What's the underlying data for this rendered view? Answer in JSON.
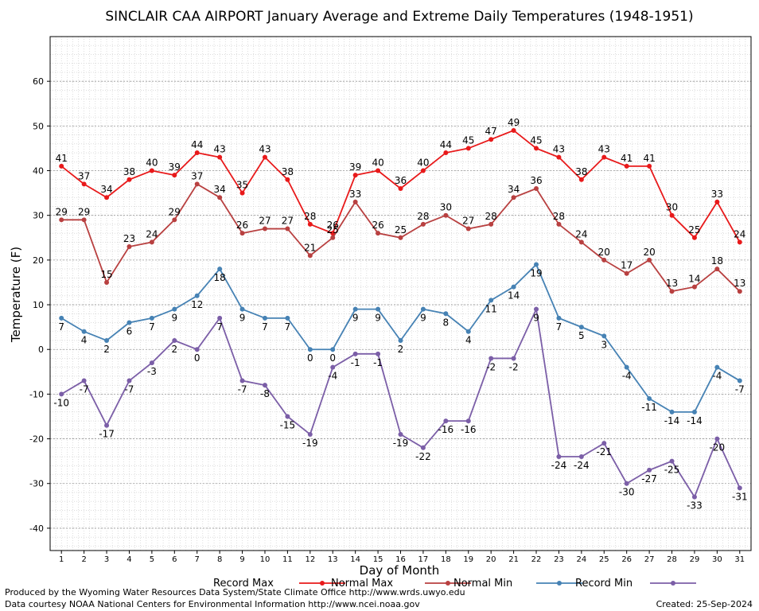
{
  "chart_data": {
    "type": "line",
    "title": "SINCLAIR CAA AIRPORT January Average and Extreme Daily Temperatures (1948-1951)",
    "xlabel": "Day of Month",
    "ylabel": "Temperature (F)",
    "ylim": [
      -45,
      70
    ],
    "y_ticks": [
      -40,
      -30,
      -20,
      -10,
      0,
      10,
      20,
      30,
      40,
      50,
      60
    ],
    "x": [
      1,
      2,
      3,
      4,
      5,
      6,
      7,
      8,
      9,
      10,
      11,
      12,
      13,
      14,
      15,
      16,
      17,
      18,
      19,
      20,
      21,
      22,
      23,
      24,
      25,
      26,
      27,
      28,
      29,
      30,
      31
    ],
    "grid": true,
    "legend_position": "bottom",
    "series": [
      {
        "name": "Record Max",
        "color": "#e8191a",
        "label_pos": "above",
        "values": [
          41,
          37,
          34,
          38,
          40,
          39,
          44,
          43,
          35,
          43,
          38,
          28,
          26,
          39,
          40,
          36,
          40,
          44,
          45,
          47,
          49,
          45,
          43,
          38,
          43,
          41,
          41,
          30,
          25,
          33,
          24
        ]
      },
      {
        "name": "Normal Max",
        "color": "#b84040",
        "label_pos": "above",
        "values": [
          29,
          29,
          15,
          23,
          24,
          29,
          37,
          34,
          26,
          27,
          27,
          21,
          25,
          33,
          26,
          25,
          28,
          30,
          27,
          28,
          34,
          36,
          28,
          24,
          20,
          17,
          20,
          13,
          14,
          18,
          13
        ]
      },
      {
        "name": "Normal Min",
        "color": "#4682b4",
        "label_pos": "below",
        "values": [
          7,
          4,
          2,
          6,
          7,
          9,
          12,
          18,
          9,
          7,
          7,
          0,
          0,
          9,
          9,
          2,
          9,
          8,
          4,
          11,
          14,
          19,
          7,
          5,
          3,
          -4,
          -11,
          -14,
          -14,
          -4,
          -7
        ]
      },
      {
        "name": "Record Min",
        "color": "#7b5ea7",
        "label_pos": "below",
        "values": [
          -10,
          -7,
          -17,
          -7,
          -3,
          2,
          0,
          7,
          -7,
          -8,
          -15,
          -19,
          -4,
          -1,
          -1,
          -19,
          -22,
          -16,
          -16,
          -2,
          -2,
          9,
          -24,
          -24,
          -21,
          -30,
          -27,
          -25,
          -33,
          -20,
          -31
        ]
      }
    ]
  },
  "footer": {
    "produced_by": "Produced by the Wyoming Water Resources Data System/State Climate Office http://www.wrds.uwyo.edu",
    "data_courtesy": "Data courtesy NOAA National Centers for Environmental Information http://www.ncei.noaa.gov",
    "created": "Created: 25-Sep-2024"
  }
}
